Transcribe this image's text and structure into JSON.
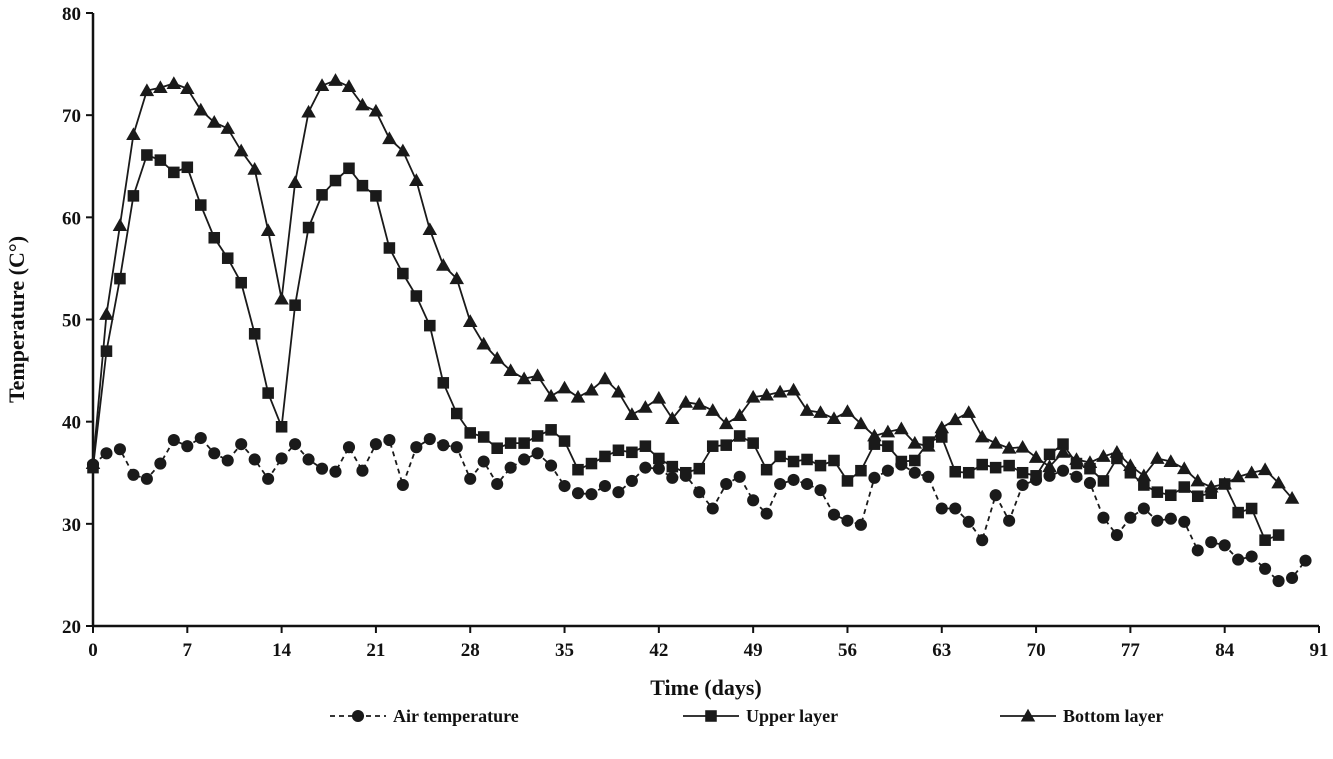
{
  "chart_data": {
    "type": "line",
    "title": "",
    "xlabel": "Time (days)",
    "ylabel": "Temperature (C°)",
    "xlim": [
      0,
      91
    ],
    "ylim": [
      20,
      80
    ],
    "xticks": [
      0,
      7,
      14,
      21,
      28,
      35,
      42,
      49,
      56,
      63,
      70,
      77,
      84,
      91
    ],
    "yticks": [
      20,
      30,
      40,
      50,
      60,
      70,
      80
    ],
    "grid": false,
    "legend": "bottom",
    "series": [
      {
        "name": "Air temperature",
        "style": "dashed",
        "marker": "circle",
        "color": "#1a1a1a",
        "points": [
          [
            0,
            35.8
          ],
          [
            1,
            36.9
          ],
          [
            2,
            37.3
          ],
          [
            3,
            34.8
          ],
          [
            4,
            34.4
          ],
          [
            5,
            35.9
          ],
          [
            6,
            38.2
          ],
          [
            7,
            37.6
          ],
          [
            8,
            38.4
          ],
          [
            9,
            36.9
          ],
          [
            10,
            36.2
          ],
          [
            11,
            37.8
          ],
          [
            12,
            36.3
          ],
          [
            13,
            34.4
          ],
          [
            14,
            36.4
          ],
          [
            15,
            37.8
          ],
          [
            16,
            36.3
          ],
          [
            17,
            35.4
          ],
          [
            18,
            35.1
          ],
          [
            19,
            37.5
          ],
          [
            20,
            35.2
          ],
          [
            21,
            37.8
          ],
          [
            22,
            38.2
          ],
          [
            23,
            33.8
          ],
          [
            24,
            37.5
          ],
          [
            25,
            38.3
          ],
          [
            26,
            37.7
          ],
          [
            27,
            37.5
          ],
          [
            28,
            34.4
          ],
          [
            29,
            36.1
          ],
          [
            30,
            33.9
          ],
          [
            31,
            35.5
          ],
          [
            32,
            36.3
          ],
          [
            33,
            36.9
          ],
          [
            34,
            35.7
          ],
          [
            35,
            33.7
          ],
          [
            36,
            33.0
          ],
          [
            37,
            32.9
          ],
          [
            38,
            33.7
          ],
          [
            39,
            33.1
          ],
          [
            40,
            34.2
          ],
          [
            41,
            35.5
          ],
          [
            42,
            35.4
          ],
          [
            43,
            34.5
          ],
          [
            44,
            34.7
          ],
          [
            45,
            33.1
          ],
          [
            46,
            31.5
          ],
          [
            47,
            33.9
          ],
          [
            48,
            34.6
          ],
          [
            49,
            32.3
          ],
          [
            50,
            31.0
          ],
          [
            51,
            33.9
          ],
          [
            52,
            34.3
          ],
          [
            53,
            33.9
          ],
          [
            54,
            33.3
          ],
          [
            55,
            30.9
          ],
          [
            56,
            30.3
          ],
          [
            57,
            29.9
          ],
          [
            58,
            34.5
          ],
          [
            59,
            35.2
          ],
          [
            60,
            35.8
          ],
          [
            61,
            35.0
          ],
          [
            62,
            34.6
          ],
          [
            63,
            31.5
          ],
          [
            64,
            31.5
          ],
          [
            65,
            30.2
          ],
          [
            66,
            28.4
          ],
          [
            67,
            32.8
          ],
          [
            68,
            30.3
          ],
          [
            69,
            33.8
          ],
          [
            70,
            34.3
          ],
          [
            71,
            34.7
          ],
          [
            72,
            35.2
          ],
          [
            73,
            34.6
          ],
          [
            74,
            34.0
          ],
          [
            75,
            30.6
          ],
          [
            76,
            28.9
          ],
          [
            77,
            30.6
          ],
          [
            78,
            31.5
          ],
          [
            79,
            30.3
          ],
          [
            80,
            30.5
          ],
          [
            81,
            30.2
          ],
          [
            82,
            27.4
          ],
          [
            83,
            28.2
          ],
          [
            84,
            27.9
          ],
          [
            85,
            26.5
          ],
          [
            86,
            26.8
          ],
          [
            87,
            25.6
          ],
          [
            88,
            24.4
          ],
          [
            89,
            24.7
          ],
          [
            90,
            26.4
          ]
        ]
      },
      {
        "name": "Upper layer",
        "style": "solid",
        "marker": "square",
        "color": "#1a1a1a",
        "points": [
          [
            0,
            35.5
          ],
          [
            1,
            46.9
          ],
          [
            2,
            54.0
          ],
          [
            3,
            62.1
          ],
          [
            4,
            66.1
          ],
          [
            5,
            65.6
          ],
          [
            6,
            64.4
          ],
          [
            7,
            64.9
          ],
          [
            8,
            61.2
          ],
          [
            9,
            58.0
          ],
          [
            10,
            56.0
          ],
          [
            11,
            53.6
          ],
          [
            12,
            48.6
          ],
          [
            13,
            42.8
          ],
          [
            14,
            39.5
          ],
          [
            15,
            51.4
          ],
          [
            16,
            59.0
          ],
          [
            17,
            62.2
          ],
          [
            18,
            63.6
          ],
          [
            19,
            64.8
          ],
          [
            20,
            63.1
          ],
          [
            21,
            62.1
          ],
          [
            22,
            57.0
          ],
          [
            23,
            54.5
          ],
          [
            24,
            52.3
          ],
          [
            25,
            49.4
          ],
          [
            26,
            43.8
          ],
          [
            27,
            40.8
          ],
          [
            28,
            38.9
          ],
          [
            29,
            38.5
          ],
          [
            30,
            37.4
          ],
          [
            31,
            37.9
          ],
          [
            32,
            37.9
          ],
          [
            33,
            38.6
          ],
          [
            34,
            39.2
          ],
          [
            35,
            38.1
          ],
          [
            36,
            35.3
          ],
          [
            37,
            35.9
          ],
          [
            38,
            36.6
          ],
          [
            39,
            37.2
          ],
          [
            40,
            37.0
          ],
          [
            41,
            37.6
          ],
          [
            42,
            36.4
          ],
          [
            43,
            35.6
          ],
          [
            44,
            35.0
          ],
          [
            45,
            35.4
          ],
          [
            46,
            37.6
          ],
          [
            47,
            37.7
          ],
          [
            48,
            38.6
          ],
          [
            49,
            37.9
          ],
          [
            50,
            35.3
          ],
          [
            51,
            36.6
          ],
          [
            52,
            36.1
          ],
          [
            53,
            36.3
          ],
          [
            54,
            35.7
          ],
          [
            55,
            36.2
          ],
          [
            56,
            34.2
          ],
          [
            57,
            35.2
          ],
          [
            58,
            37.8
          ],
          [
            59,
            37.6
          ],
          [
            60,
            36.1
          ],
          [
            61,
            36.2
          ],
          [
            62,
            38.0
          ],
          [
            63,
            38.5
          ],
          [
            64,
            35.1
          ],
          [
            65,
            35.0
          ],
          [
            66,
            35.8
          ],
          [
            67,
            35.5
          ],
          [
            68,
            35.7
          ],
          [
            69,
            35.0
          ],
          [
            70,
            34.7
          ],
          [
            71,
            36.8
          ],
          [
            72,
            37.8
          ],
          [
            73,
            35.9
          ],
          [
            74,
            35.4
          ],
          [
            75,
            34.2
          ],
          [
            76,
            36.4
          ],
          [
            77,
            35.0
          ],
          [
            78,
            33.8
          ],
          [
            79,
            33.1
          ],
          [
            80,
            32.8
          ],
          [
            81,
            33.6
          ],
          [
            82,
            32.7
          ],
          [
            83,
            33.0
          ],
          [
            84,
            33.9
          ],
          [
            85,
            31.1
          ],
          [
            86,
            31.5
          ],
          [
            87,
            28.4
          ],
          [
            88,
            28.9
          ]
        ]
      },
      {
        "name": "Bottom layer",
        "style": "solid",
        "marker": "triangle",
        "color": "#1a1a1a",
        "points": [
          [
            0,
            35.9
          ],
          [
            1,
            50.5
          ],
          [
            2,
            59.2
          ],
          [
            3,
            68.1
          ],
          [
            4,
            72.4
          ],
          [
            5,
            72.7
          ],
          [
            6,
            73.1
          ],
          [
            7,
            72.6
          ],
          [
            8,
            70.5
          ],
          [
            9,
            69.3
          ],
          [
            10,
            68.7
          ],
          [
            11,
            66.5
          ],
          [
            12,
            64.7
          ],
          [
            13,
            58.7
          ],
          [
            14,
            52.0
          ],
          [
            15,
            63.4
          ],
          [
            16,
            70.3
          ],
          [
            17,
            72.9
          ],
          [
            18,
            73.4
          ],
          [
            19,
            72.8
          ],
          [
            20,
            71.0
          ],
          [
            21,
            70.4
          ],
          [
            22,
            67.7
          ],
          [
            23,
            66.5
          ],
          [
            24,
            63.6
          ],
          [
            25,
            58.8
          ],
          [
            26,
            55.3
          ],
          [
            27,
            54.0
          ],
          [
            28,
            49.8
          ],
          [
            29,
            47.6
          ],
          [
            30,
            46.2
          ],
          [
            31,
            45.0
          ],
          [
            32,
            44.2
          ],
          [
            33,
            44.5
          ],
          [
            34,
            42.5
          ],
          [
            35,
            43.3
          ],
          [
            36,
            42.4
          ],
          [
            37,
            43.1
          ],
          [
            38,
            44.2
          ],
          [
            39,
            42.9
          ],
          [
            40,
            40.7
          ],
          [
            41,
            41.4
          ],
          [
            42,
            42.3
          ],
          [
            43,
            40.3
          ],
          [
            44,
            41.9
          ],
          [
            45,
            41.7
          ],
          [
            46,
            41.1
          ],
          [
            47,
            39.8
          ],
          [
            48,
            40.6
          ],
          [
            49,
            42.4
          ],
          [
            50,
            42.6
          ],
          [
            51,
            42.9
          ],
          [
            52,
            43.1
          ],
          [
            53,
            41.1
          ],
          [
            54,
            40.9
          ],
          [
            55,
            40.3
          ],
          [
            56,
            41.0
          ],
          [
            57,
            39.8
          ],
          [
            58,
            38.6
          ],
          [
            59,
            39.0
          ],
          [
            60,
            39.3
          ],
          [
            61,
            37.9
          ],
          [
            62,
            37.6
          ],
          [
            63,
            39.4
          ],
          [
            64,
            40.2
          ],
          [
            65,
            40.9
          ],
          [
            66,
            38.5
          ],
          [
            67,
            37.9
          ],
          [
            68,
            37.4
          ],
          [
            69,
            37.5
          ],
          [
            70,
            36.5
          ],
          [
            71,
            35.6
          ],
          [
            72,
            37.0
          ],
          [
            73,
            36.3
          ],
          [
            74,
            36.0
          ],
          [
            75,
            36.6
          ],
          [
            76,
            37.0
          ],
          [
            77,
            35.7
          ],
          [
            78,
            34.7
          ],
          [
            79,
            36.4
          ],
          [
            80,
            36.1
          ],
          [
            81,
            35.4
          ],
          [
            82,
            34.2
          ],
          [
            83,
            33.6
          ],
          [
            84,
            33.9
          ],
          [
            85,
            34.6
          ],
          [
            86,
            35.0
          ],
          [
            87,
            35.3
          ],
          [
            88,
            34.0
          ],
          [
            89,
            32.5
          ]
        ]
      }
    ]
  }
}
